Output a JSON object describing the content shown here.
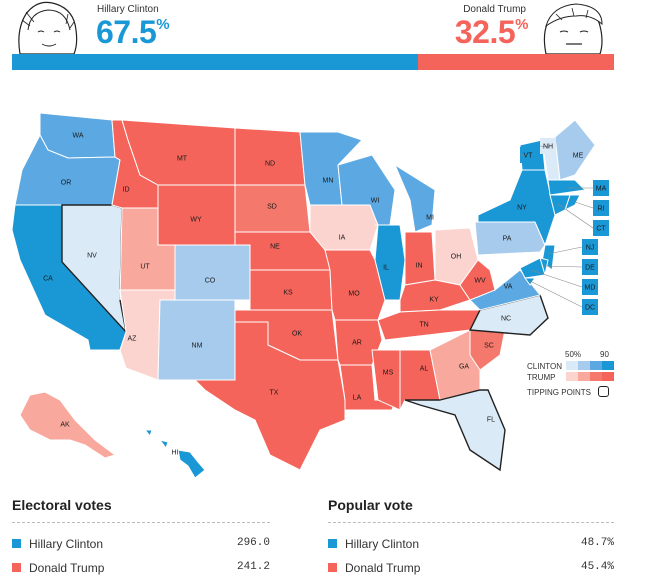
{
  "colors": {
    "clinton": "#1a98d6",
    "trump": "#f4645a",
    "lead_line": "#888888"
  },
  "header": {
    "clinton": {
      "name": "Hillary Clinton",
      "pct": "67.5",
      "pct_symbol": "%",
      "share": 0.675
    },
    "trump": {
      "name": "Donald Trump",
      "pct": "32.5",
      "pct_symbol": "%",
      "share": 0.325
    }
  },
  "legend": {
    "low": "50%",
    "high": "90",
    "clinton_label": "CLINTON",
    "trump_label": "TRUMP",
    "tipping_label": "TIPPING POINTS"
  },
  "states": [
    {
      "code": "WA",
      "party": "D",
      "strength": 3
    },
    {
      "code": "OR",
      "party": "D",
      "strength": 3
    },
    {
      "code": "CA",
      "party": "D",
      "strength": 4
    },
    {
      "code": "NV",
      "party": "D",
      "strength": 1
    },
    {
      "code": "ID",
      "party": "R",
      "strength": 4
    },
    {
      "code": "MT",
      "party": "R",
      "strength": 4
    },
    {
      "code": "WY",
      "party": "R",
      "strength": 4
    },
    {
      "code": "UT",
      "party": "R",
      "strength": 2
    },
    {
      "code": "AZ",
      "party": "R",
      "strength": 1
    },
    {
      "code": "CO",
      "party": "D",
      "strength": 2
    },
    {
      "code": "NM",
      "party": "D",
      "strength": 2
    },
    {
      "code": "ND",
      "party": "R",
      "strength": 4
    },
    {
      "code": "SD",
      "party": "R",
      "strength": 3
    },
    {
      "code": "NE",
      "party": "R",
      "strength": 4
    },
    {
      "code": "KS",
      "party": "R",
      "strength": 4
    },
    {
      "code": "OK",
      "party": "R",
      "strength": 4
    },
    {
      "code": "TX",
      "party": "R",
      "strength": 4
    },
    {
      "code": "MN",
      "party": "D",
      "strength": 3
    },
    {
      "code": "IA",
      "party": "R",
      "strength": 1
    },
    {
      "code": "MO",
      "party": "R",
      "strength": 4
    },
    {
      "code": "AR",
      "party": "R",
      "strength": 4
    },
    {
      "code": "LA",
      "party": "R",
      "strength": 4
    },
    {
      "code": "WI",
      "party": "D",
      "strength": 3
    },
    {
      "code": "IL",
      "party": "D",
      "strength": 4
    },
    {
      "code": "MI",
      "party": "D",
      "strength": 3
    },
    {
      "code": "IN",
      "party": "R",
      "strength": 4
    },
    {
      "code": "OH",
      "party": "R",
      "strength": 1
    },
    {
      "code": "KY",
      "party": "R",
      "strength": 4
    },
    {
      "code": "TN",
      "party": "R",
      "strength": 4
    },
    {
      "code": "MS",
      "party": "R",
      "strength": 4
    },
    {
      "code": "AL",
      "party": "R",
      "strength": 4
    },
    {
      "code": "GA",
      "party": "R",
      "strength": 2
    },
    {
      "code": "FL",
      "party": "D",
      "strength": 1
    },
    {
      "code": "SC",
      "party": "R",
      "strength": 3
    },
    {
      "code": "NC",
      "party": "D",
      "strength": 1
    },
    {
      "code": "VA",
      "party": "D",
      "strength": 3
    },
    {
      "code": "WV",
      "party": "R",
      "strength": 4
    },
    {
      "code": "PA",
      "party": "D",
      "strength": 2
    },
    {
      "code": "NY",
      "party": "D",
      "strength": 4
    },
    {
      "code": "VT",
      "party": "D",
      "strength": 4
    },
    {
      "code": "NH",
      "party": "D",
      "strength": 1
    },
    {
      "code": "ME",
      "party": "D",
      "strength": 2
    },
    {
      "code": "MA",
      "party": "D",
      "strength": 4
    },
    {
      "code": "RI",
      "party": "D",
      "strength": 4
    },
    {
      "code": "CT",
      "party": "D",
      "strength": 4
    },
    {
      "code": "NJ",
      "party": "D",
      "strength": 4
    },
    {
      "code": "DE",
      "party": "D",
      "strength": 4
    },
    {
      "code": "MD",
      "party": "D",
      "strength": 4
    },
    {
      "code": "DC",
      "party": "D",
      "strength": 4
    },
    {
      "code": "AK",
      "party": "R",
      "strength": 2
    },
    {
      "code": "HI",
      "party": "D",
      "strength": 4
    }
  ],
  "electoral_votes": {
    "title": "Electoral votes",
    "rows": [
      {
        "name": "Hillary Clinton",
        "value": "296.0"
      },
      {
        "name": "Donald Trump",
        "value": "241.2"
      }
    ]
  },
  "popular_vote": {
    "title": "Popular vote",
    "rows": [
      {
        "name": "Hillary Clinton",
        "value": "48.7%"
      },
      {
        "name": "Donald Trump",
        "value": "45.4%"
      }
    ]
  }
}
